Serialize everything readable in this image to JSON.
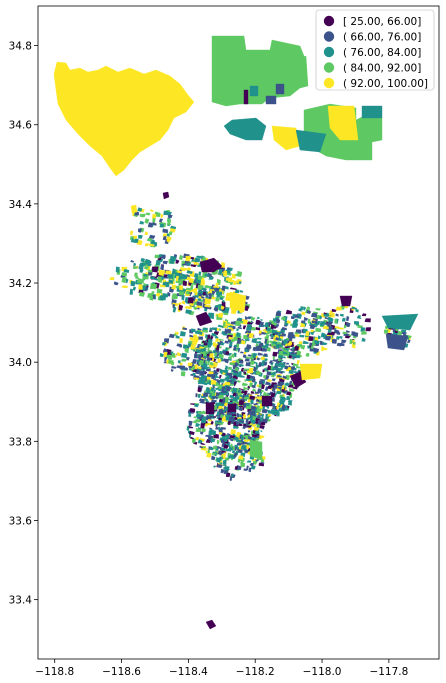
{
  "chart_data": {
    "type": "choropleth",
    "title": "",
    "xlabel": "",
    "ylabel": "",
    "xlim": [
      -118.85,
      -117.65
    ],
    "ylim": [
      33.25,
      34.9
    ],
    "x_ticks": [
      -118.8,
      -118.6,
      -118.4,
      -118.2,
      -118.0,
      -117.8
    ],
    "x_tick_labels": [
      "−118.8",
      "−118.6",
      "−118.4",
      "−118.2",
      "−118.0",
      "−117.8"
    ],
    "y_ticks": [
      33.4,
      33.6,
      33.8,
      34.0,
      34.2,
      34.4,
      34.6,
      34.8
    ],
    "y_tick_labels": [
      "33.4",
      "33.6",
      "33.8",
      "34.0",
      "34.2",
      "34.4",
      "34.6",
      "34.8"
    ],
    "grid": false,
    "legend_placement": "top-right",
    "classes": [
      {
        "label": "[ 25.00,  66.00]",
        "color": "#440154"
      },
      {
        "label": "( 66.00,  76.00]",
        "color": "#3b528b"
      },
      {
        "label": "( 76.00,  84.00]",
        "color": "#21918c"
      },
      {
        "label": "( 84.00,  92.00]",
        "color": "#5ec962"
      },
      {
        "label": "( 92.00, 100.00]",
        "color": "#fde725"
      }
    ]
  }
}
